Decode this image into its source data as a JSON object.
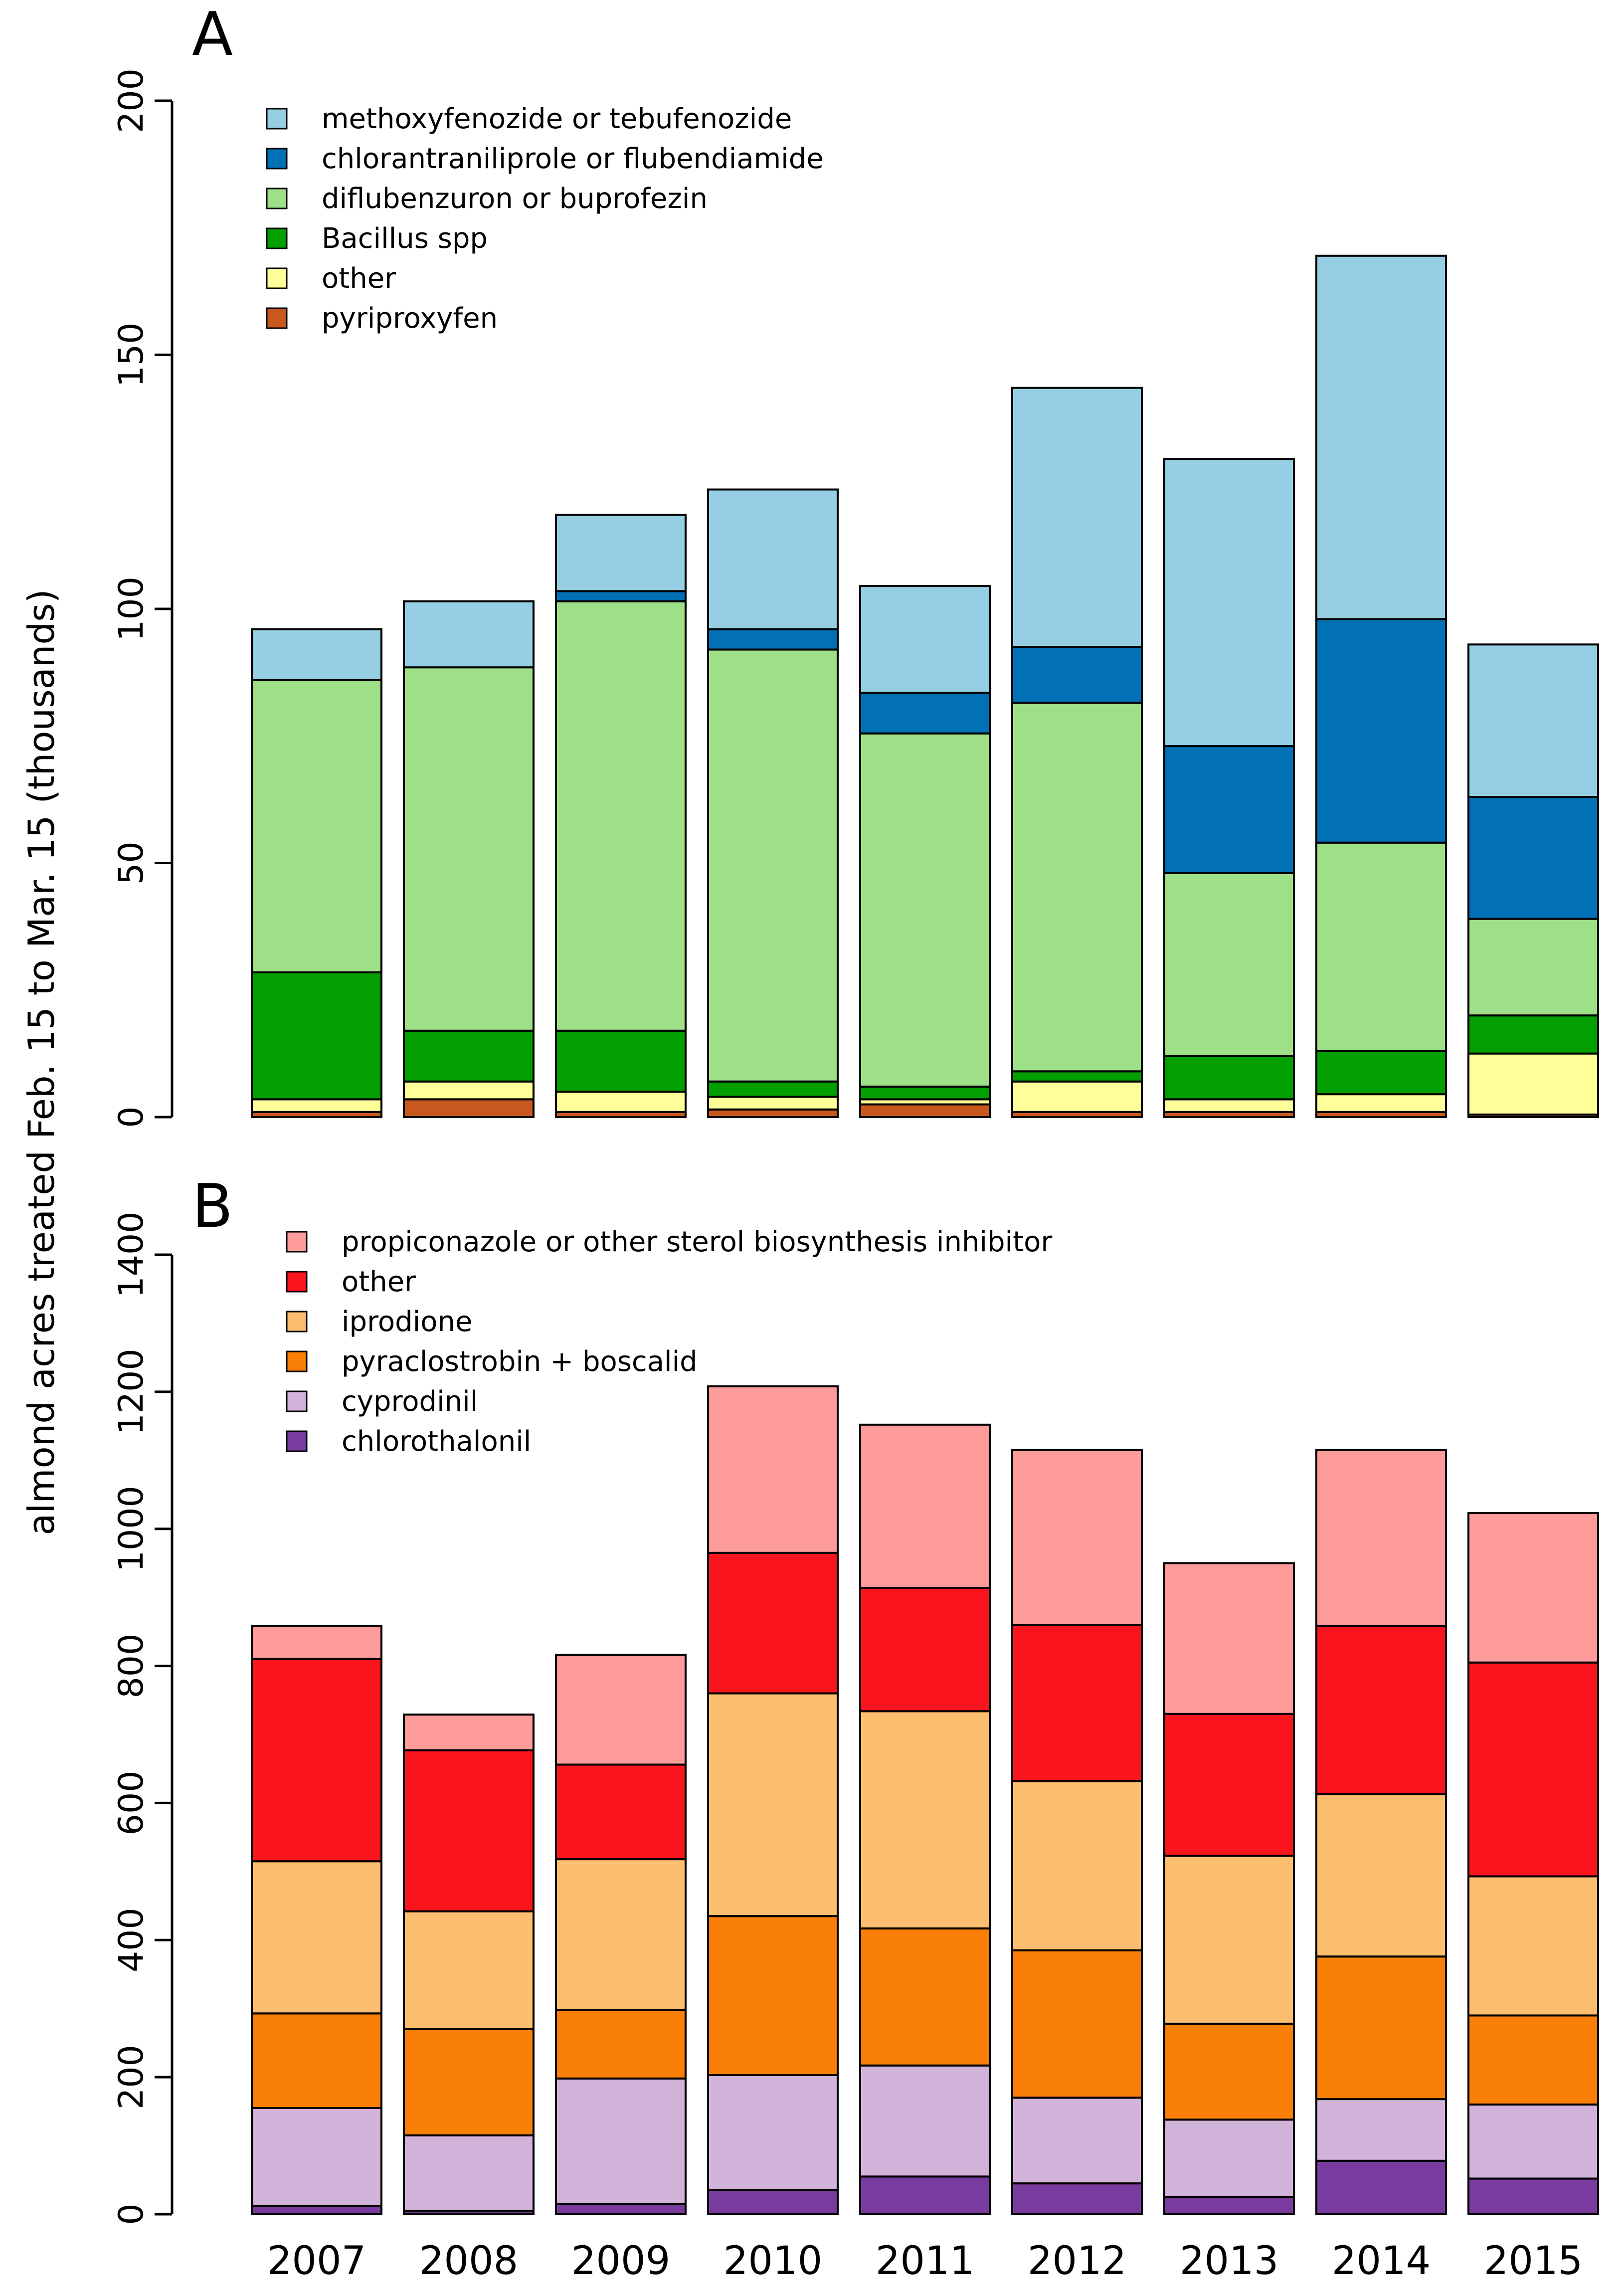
{
  "figure": {
    "ylabel": "almond acres treated Feb. 15 to Mar. 15 (thousands)",
    "years": [
      "2007",
      "2008",
      "2009",
      "2010",
      "2011",
      "2012",
      "2013",
      "2014",
      "2015"
    ]
  },
  "chart_data": [
    {
      "type": "bar",
      "stacked": true,
      "panel": "A",
      "title": "",
      "xlabel": "",
      "ylabel": "almond acres treated Feb. 15 to Mar. 15 (thousands)",
      "ylim": [
        0,
        200
      ],
      "yticks": [
        "0",
        "50",
        "100",
        "150",
        "200"
      ],
      "legend_position": "top-left",
      "categories": [
        "2007",
        "2008",
        "2009",
        "2010",
        "2011",
        "2012",
        "2013",
        "2014",
        "2015"
      ],
      "series": [
        {
          "name": "pyriproxyfen",
          "color": "#c8581e",
          "values": [
            1,
            3.5,
            1,
            1.5,
            2.5,
            1,
            1,
            1,
            0.5
          ]
        },
        {
          "name": "other",
          "color": "#ffff99",
          "values": [
            2.5,
            3.5,
            4,
            2.5,
            1,
            6,
            2.5,
            3.5,
            12
          ]
        },
        {
          "name": "Bacillus spp",
          "color": "#01a000",
          "values": [
            25,
            10,
            12,
            3,
            2.5,
            2,
            8.5,
            8.5,
            7.5
          ]
        },
        {
          "name": "diflubenzuron or buprofezin",
          "color": "#9ee087",
          "values": [
            57.5,
            71.5,
            84.5,
            85,
            69.5,
            72.5,
            36,
            41,
            19
          ]
        },
        {
          "name": "chlorantraniliprole or flubendiamide",
          "color": "#0270b4",
          "values": [
            0,
            0,
            2,
            4,
            8,
            11,
            25,
            44,
            24
          ]
        },
        {
          "name": "methoxyfenozide or tebufenozide",
          "color": "#96cfe3",
          "values": [
            10,
            13,
            15,
            27.5,
            21,
            51,
            56.5,
            71.5,
            30
          ]
        }
      ],
      "legend": [
        "methoxyfenozide or tebufenozide",
        "chlorantraniliprole or flubendiamide",
        "diflubenzuron or buprofezin",
        "Bacillus spp",
        "other",
        "pyriproxyfen"
      ]
    },
    {
      "type": "bar",
      "stacked": true,
      "panel": "B",
      "title": "",
      "xlabel": "",
      "ylabel": "almond acres treated Feb. 15 to Mar. 15 (thousands)",
      "ylim": [
        0,
        1400
      ],
      "yticks": [
        "0",
        "200",
        "400",
        "600",
        "800",
        "1000",
        "1200",
        "1400"
      ],
      "legend_position": "top-left",
      "categories": [
        "2007",
        "2008",
        "2009",
        "2010",
        "2011",
        "2012",
        "2013",
        "2014",
        "2015"
      ],
      "series": [
        {
          "name": "chlorothalonil",
          "color": "#7a3b9e",
          "values": [
            12,
            5,
            15,
            35,
            55,
            45,
            25,
            78,
            52
          ]
        },
        {
          "name": "cyprodinil",
          "color": "#d2b3da",
          "values": [
            143,
            110,
            183,
            168,
            162,
            125,
            113,
            90,
            108
          ]
        },
        {
          "name": "pyraclostrobin + boscalid",
          "color": "#fa7f07",
          "values": [
            138,
            155,
            100,
            232,
            200,
            215,
            140,
            208,
            130
          ]
        },
        {
          "name": "iprodione",
          "color": "#fdbf6f",
          "values": [
            222,
            172,
            220,
            325,
            317,
            247,
            245,
            237,
            203
          ]
        },
        {
          "name": "other",
          "color": "#fa141d",
          "values": [
            295,
            235,
            138,
            205,
            180,
            228,
            207,
            245,
            312
          ]
        },
        {
          "name": "propiconazole or other sterol biosynthesis inhibitor",
          "color": "#fe9c9b",
          "values": [
            48,
            52,
            160,
            243,
            238,
            255,
            220,
            257,
            218
          ]
        }
      ],
      "legend": [
        "propiconazole or other sterol biosynthesis inhibitor",
        "other",
        "iprodione",
        "pyraclostrobin + boscalid",
        "cyprodinil",
        "chlorothalonil"
      ]
    }
  ]
}
